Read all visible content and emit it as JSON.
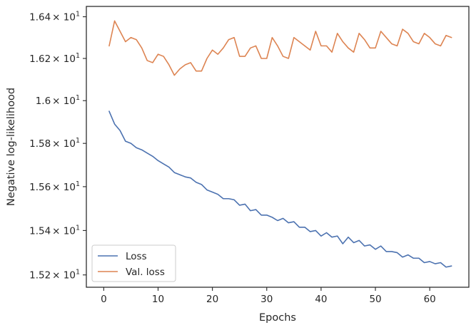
{
  "chart_data": {
    "type": "line",
    "title": "",
    "xlabel": "Epochs",
    "ylabel": "Negative log-likelihood",
    "yscale": "log",
    "xlim": [
      -3.2,
      67.2
    ],
    "ylim": [
      15.145,
      16.45
    ],
    "grid": false,
    "legend_position": "lower-left",
    "x_ticks": [
      {
        "value": 0,
        "label": "0"
      },
      {
        "value": 10,
        "label": "10"
      },
      {
        "value": 20,
        "label": "20"
      },
      {
        "value": 30,
        "label": "30"
      },
      {
        "value": 40,
        "label": "40"
      },
      {
        "value": 50,
        "label": "50"
      },
      {
        "value": 60,
        "label": "60"
      }
    ],
    "y_ticks": [
      {
        "value": 15.2,
        "mantissa": "1.52",
        "base": "× 10",
        "exp": "1"
      },
      {
        "value": 15.4,
        "mantissa": "1.54",
        "base": "× 10",
        "exp": "1"
      },
      {
        "value": 15.6,
        "mantissa": "1.56",
        "base": "× 10",
        "exp": "1"
      },
      {
        "value": 15.8,
        "mantissa": "1.58",
        "base": "× 10",
        "exp": "1"
      },
      {
        "value": 16.0,
        "mantissa": "1.6",
        "base": "× 10",
        "exp": "1"
      },
      {
        "value": 16.2,
        "mantissa": "1.62",
        "base": "× 10",
        "exp": "1"
      },
      {
        "value": 16.4,
        "mantissa": "1.64",
        "base": "× 10",
        "exp": "1"
      }
    ],
    "x": [
      1,
      2,
      3,
      4,
      5,
      6,
      7,
      8,
      9,
      10,
      11,
      12,
      13,
      14,
      15,
      16,
      17,
      18,
      19,
      20,
      21,
      22,
      23,
      24,
      25,
      26,
      27,
      28,
      29,
      30,
      31,
      32,
      33,
      34,
      35,
      36,
      37,
      38,
      39,
      40,
      41,
      42,
      43,
      44,
      45,
      46,
      47,
      48,
      49,
      50,
      51,
      52,
      53,
      54,
      55,
      56,
      57,
      58,
      59,
      60,
      61,
      62,
      63,
      64
    ],
    "series": [
      {
        "name": "Loss",
        "color": "#4c72b0",
        "values": [
          15.95,
          15.89,
          15.86,
          15.81,
          15.8,
          15.78,
          15.77,
          15.755,
          15.74,
          15.72,
          15.705,
          15.69,
          15.665,
          15.655,
          15.645,
          15.64,
          15.62,
          15.61,
          15.585,
          15.575,
          15.565,
          15.545,
          15.545,
          15.54,
          15.515,
          15.52,
          15.49,
          15.495,
          15.47,
          15.47,
          15.46,
          15.445,
          15.455,
          15.435,
          15.44,
          15.415,
          15.415,
          15.395,
          15.4,
          15.375,
          15.39,
          15.37,
          15.375,
          15.34,
          15.37,
          15.345,
          15.355,
          15.33,
          15.335,
          15.315,
          15.33,
          15.305,
          15.305,
          15.3,
          15.28,
          15.29,
          15.275,
          15.275,
          15.255,
          15.26,
          15.25,
          15.255,
          15.235,
          15.24
        ]
      },
      {
        "name": "Val. loss",
        "color": "#dd8452",
        "values": [
          16.26,
          16.38,
          16.33,
          16.28,
          16.3,
          16.29,
          16.25,
          16.19,
          16.18,
          16.22,
          16.21,
          16.17,
          16.12,
          16.15,
          16.17,
          16.18,
          16.14,
          16.14,
          16.2,
          16.24,
          16.22,
          16.25,
          16.29,
          16.3,
          16.21,
          16.21,
          16.25,
          16.26,
          16.2,
          16.2,
          16.3,
          16.26,
          16.21,
          16.2,
          16.3,
          16.28,
          16.26,
          16.24,
          16.33,
          16.26,
          16.26,
          16.23,
          16.32,
          16.28,
          16.25,
          16.23,
          16.32,
          16.29,
          16.25,
          16.25,
          16.33,
          16.3,
          16.27,
          16.26,
          16.34,
          16.32,
          16.28,
          16.27,
          16.32,
          16.3,
          16.27,
          16.26,
          16.31,
          16.3
        ]
      }
    ]
  }
}
